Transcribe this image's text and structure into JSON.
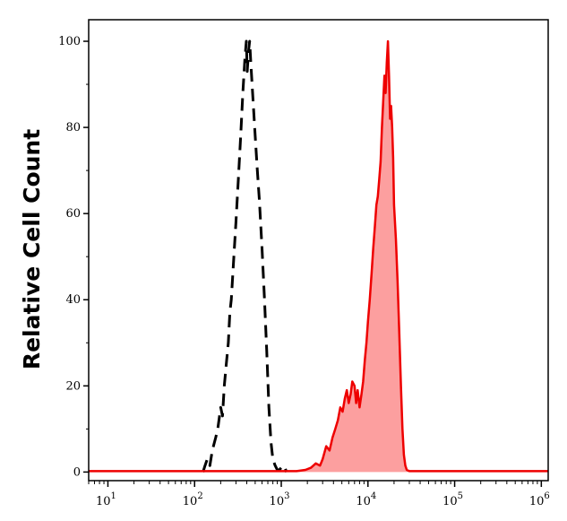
{
  "chart_data": {
    "type": "area",
    "title": "",
    "xlabel": "",
    "ylabel": "Relative Cell Count",
    "x_scale": "log",
    "xlim": [
      6,
      1200000
    ],
    "ylim": [
      -2,
      105
    ],
    "grid": false,
    "legend": "none",
    "x_ticks": [
      {
        "base": "10",
        "exp": "1",
        "value": 10
      },
      {
        "base": "10",
        "exp": "2",
        "value": 100
      },
      {
        "base": "10",
        "exp": "3",
        "value": 1000
      },
      {
        "base": "10",
        "exp": "4",
        "value": 10000
      },
      {
        "base": "10",
        "exp": "5",
        "value": 100000
      },
      {
        "base": "10",
        "exp": "6",
        "value": 1000000
      }
    ],
    "y_ticks": [
      {
        "label": "0",
        "value": 0
      },
      {
        "label": "20",
        "value": 20
      },
      {
        "label": "40",
        "value": 40
      },
      {
        "label": "60",
        "value": 60
      },
      {
        "label": "80",
        "value": 80
      },
      {
        "label": "100",
        "value": 100
      }
    ],
    "series": [
      {
        "style": "dashed",
        "color": "#000000",
        "fill": "none",
        "points": [
          [
            125,
            0
          ],
          [
            132,
            1.5
          ],
          [
            140,
            3
          ],
          [
            150,
            1.5
          ],
          [
            160,
            5
          ],
          [
            175,
            8
          ],
          [
            185,
            10
          ],
          [
            200,
            15
          ],
          [
            210,
            13
          ],
          [
            220,
            20
          ],
          [
            232,
            25
          ],
          [
            245,
            30
          ],
          [
            255,
            37
          ],
          [
            265,
            40
          ],
          [
            280,
            48
          ],
          [
            300,
            58
          ],
          [
            320,
            68
          ],
          [
            340,
            78
          ],
          [
            360,
            88
          ],
          [
            380,
            96
          ],
          [
            395,
            100
          ],
          [
            405,
            93
          ],
          [
            420,
            98
          ],
          [
            432,
            100
          ],
          [
            445,
            95
          ],
          [
            470,
            87
          ],
          [
            500,
            78
          ],
          [
            530,
            70
          ],
          [
            560,
            63
          ],
          [
            600,
            52
          ],
          [
            640,
            40
          ],
          [
            680,
            28
          ],
          [
            720,
            15
          ],
          [
            760,
            7
          ],
          [
            800,
            3
          ],
          [
            850,
            1.5
          ],
          [
            900,
            0.5
          ],
          [
            950,
            0.5
          ],
          [
            1000,
            1
          ],
          [
            1050,
            0.5
          ],
          [
            1100,
            1
          ],
          [
            1150,
            0
          ]
        ]
      },
      {
        "style": "solid",
        "color": "#ee0000",
        "fill": "#fc9f9f",
        "points": [
          [
            6,
            0.2
          ],
          [
            1500,
            0.2
          ],
          [
            1900,
            0.5
          ],
          [
            2200,
            1
          ],
          [
            2500,
            2
          ],
          [
            2800,
            1.5
          ],
          [
            3000,
            3
          ],
          [
            3300,
            6
          ],
          [
            3600,
            5
          ],
          [
            3900,
            8
          ],
          [
            4200,
            10
          ],
          [
            4500,
            12
          ],
          [
            4800,
            15
          ],
          [
            5100,
            14
          ],
          [
            5400,
            17
          ],
          [
            5700,
            19
          ],
          [
            6000,
            16
          ],
          [
            6300,
            18
          ],
          [
            6600,
            21
          ],
          [
            7000,
            20
          ],
          [
            7300,
            16
          ],
          [
            7600,
            19
          ],
          [
            8000,
            15
          ],
          [
            8400,
            18
          ],
          [
            8800,
            21
          ],
          [
            9200,
            26
          ],
          [
            9600,
            30
          ],
          [
            10000,
            35
          ],
          [
            10500,
            40
          ],
          [
            11000,
            46
          ],
          [
            11500,
            52
          ],
          [
            12000,
            57
          ],
          [
            12500,
            62
          ],
          [
            13000,
            64
          ],
          [
            13500,
            68
          ],
          [
            14000,
            72
          ],
          [
            14500,
            80
          ],
          [
            15000,
            86
          ],
          [
            15500,
            92
          ],
          [
            16000,
            88
          ],
          [
            16500,
            95
          ],
          [
            17000,
            100
          ],
          [
            17500,
            92
          ],
          [
            18000,
            82
          ],
          [
            18500,
            85
          ],
          [
            19000,
            80
          ],
          [
            19500,
            73
          ],
          [
            20000,
            62
          ],
          [
            21000,
            54
          ],
          [
            22000,
            44
          ],
          [
            23000,
            32
          ],
          [
            24000,
            20
          ],
          [
            25000,
            10
          ],
          [
            26000,
            4
          ],
          [
            27000,
            1.5
          ],
          [
            28000,
            0.5
          ],
          [
            30000,
            0.2
          ],
          [
            1200000,
            0.2
          ]
        ]
      }
    ]
  }
}
